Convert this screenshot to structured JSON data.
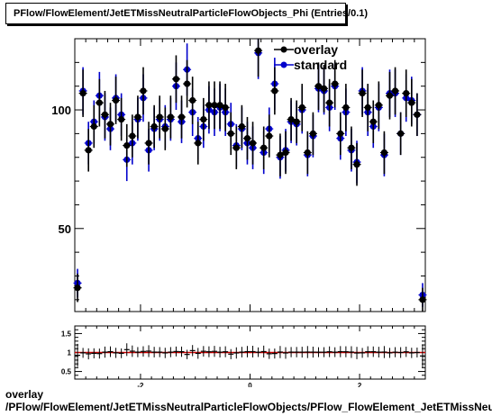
{
  "title": "PFlow/FlowElement/JetETMissNeutralParticleFlowObjects_Phi (Entries/0.1)",
  "footer": {
    "line1": "overlay",
    "line2": "/PFlow/FlowElement/JetETMissNeutralParticleFlowObjects/PFlow_FlowElement_JetETMissNeutralParticleFlowObjects_Phi"
  },
  "colors": {
    "overlay": "#000000",
    "standard": "#0000cc",
    "ratio_line": "#cc0000"
  },
  "chart_data": [
    {
      "type": "scatter",
      "xlim": [
        -3.2,
        3.2
      ],
      "ylim": [
        15,
        130
      ],
      "yticks": [
        50,
        100
      ],
      "legend": "top-right",
      "series": [
        {
          "name": "overlay",
          "x": [
            -3.15,
            -3.05,
            -2.95,
            -2.85,
            -2.75,
            -2.65,
            -2.55,
            -2.45,
            -2.35,
            -2.25,
            -2.15,
            -2.05,
            -1.95,
            -1.85,
            -1.75,
            -1.65,
            -1.55,
            -1.45,
            -1.35,
            -1.25,
            -1.15,
            -1.05,
            -0.95,
            -0.85,
            -0.75,
            -0.65,
            -0.55,
            -0.45,
            -0.35,
            -0.25,
            -0.15,
            -0.05,
            0.05,
            0.15,
            0.25,
            0.35,
            0.45,
            0.55,
            0.65,
            0.75,
            0.85,
            0.95,
            1.05,
            1.15,
            1.25,
            1.35,
            1.45,
            1.55,
            1.65,
            1.75,
            1.85,
            1.95,
            2.05,
            2.15,
            2.25,
            2.35,
            2.45,
            2.55,
            2.65,
            2.75,
            2.85,
            2.95,
            3.05,
            3.15
          ],
          "y": [
            25,
            107,
            83,
            93,
            103,
            98,
            94,
            104,
            96,
            85,
            89,
            97,
            108,
            86,
            93,
            97,
            92,
            97,
            113,
            97,
            111,
            104,
            86,
            96,
            102,
            102,
            102,
            101,
            90,
            84,
            93,
            88,
            86,
            125,
            84,
            89,
            108,
            81,
            82,
            96,
            95,
            101,
            82,
            90,
            110,
            109,
            103,
            111,
            90,
            101,
            84,
            77,
            107,
            101,
            95,
            102,
            82,
            106,
            108,
            90,
            107,
            103,
            98,
            20
          ],
          "yerr": [
            6,
            10,
            9,
            9,
            10,
            10,
            9,
            10,
            9,
            9,
            9,
            9,
            10,
            9,
            9,
            9,
            9,
            9,
            10,
            9,
            10,
            10,
            9,
            9,
            10,
            10,
            10,
            10,
            9,
            9,
            9,
            9,
            9,
            11,
            9,
            9,
            10,
            9,
            9,
            9,
            9,
            10,
            9,
            9,
            10,
            10,
            10,
            10,
            9,
            10,
            9,
            9,
            10,
            10,
            9,
            10,
            9,
            10,
            10,
            9,
            10,
            10,
            9,
            5
          ]
        },
        {
          "name": "standard",
          "x": [
            -3.15,
            -3.05,
            -2.95,
            -2.85,
            -2.75,
            -2.65,
            -2.55,
            -2.45,
            -2.35,
            -2.25,
            -2.15,
            -2.05,
            -1.95,
            -1.85,
            -1.75,
            -1.65,
            -1.55,
            -1.45,
            -1.35,
            -1.25,
            -1.15,
            -1.05,
            -0.95,
            -0.85,
            -0.75,
            -0.65,
            -0.55,
            -0.45,
            -0.35,
            -0.25,
            -0.15,
            -0.05,
            0.05,
            0.15,
            0.25,
            0.35,
            0.45,
            0.55,
            0.65,
            0.75,
            0.85,
            0.95,
            1.05,
            1.15,
            1.25,
            1.35,
            1.45,
            1.55,
            1.65,
            1.75,
            1.85,
            1.95,
            2.05,
            2.15,
            2.25,
            2.35,
            2.45,
            2.55,
            2.65,
            2.75,
            2.85,
            2.95,
            3.05,
            3.15
          ],
          "y": [
            27,
            108,
            86,
            95,
            106,
            97,
            92,
            105,
            98,
            79,
            86,
            96,
            105,
            83,
            92,
            96,
            93,
            96,
            110,
            95,
            117,
            99,
            88,
            93,
            100,
            99,
            101,
            99,
            94,
            85,
            92,
            86,
            84,
            124,
            82,
            92,
            111,
            80,
            83,
            95,
            94,
            100,
            81,
            89,
            109,
            108,
            101,
            110,
            88,
            99,
            83,
            78,
            108,
            99,
            93,
            101,
            81,
            107,
            107,
            90,
            105,
            104,
            98,
            22
          ],
          "yerr": [
            6,
            10,
            9,
            9,
            10,
            10,
            9,
            10,
            9,
            9,
            9,
            9,
            10,
            9,
            9,
            9,
            9,
            9,
            10,
            9,
            11,
            10,
            9,
            9,
            10,
            10,
            10,
            10,
            9,
            9,
            9,
            9,
            9,
            11,
            9,
            9,
            11,
            9,
            9,
            9,
            9,
            10,
            9,
            9,
            10,
            10,
            10,
            10,
            9,
            10,
            9,
            9,
            10,
            10,
            9,
            10,
            9,
            10,
            10,
            9,
            10,
            10,
            9,
            5
          ]
        }
      ]
    },
    {
      "type": "scatter",
      "xlim": [
        -3.2,
        3.2
      ],
      "ylim": [
        0.3,
        1.7
      ],
      "xticks": [
        -2,
        0,
        2
      ],
      "yticks": [
        0.5,
        1,
        1.5
      ],
      "reference_line": 1
    }
  ]
}
